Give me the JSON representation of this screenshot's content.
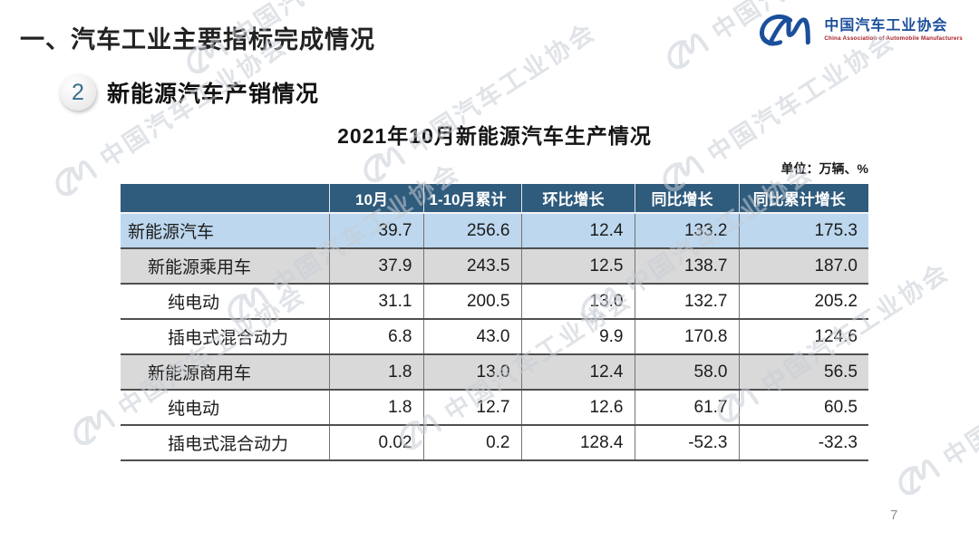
{
  "slide": {
    "title": "一、汽车工业主要指标完成情况",
    "page_number": "7"
  },
  "logo": {
    "name_cn": "中国汽车工业协会",
    "name_en": "China Association of Automobile Manufacturers",
    "brand_blue": "#1b4f9b",
    "subtitle_red": "#a61c24"
  },
  "section": {
    "badge": "2",
    "heading": "新能源汽车产销情况"
  },
  "table_title": "2021年10月新能源汽车生产情况",
  "unit_note": "单位：万辆、%",
  "watermark": {
    "text": "中国汽车工业协会"
  },
  "colors": {
    "header_bg": "#2f5b7d",
    "row_blue": "#bdd7ee",
    "row_gray": "#d9d9d9"
  },
  "table": {
    "columns": [
      "",
      "10月",
      "1-10月累计",
      "环比增长",
      "同比增长",
      "同比累计增长"
    ],
    "rows": [
      {
        "label": "新能源汽车",
        "indent": 0,
        "values": [
          "39.7",
          "256.6",
          "12.4",
          "133.2",
          "175.3"
        ]
      },
      {
        "label": "新能源乘用车",
        "indent": 1,
        "values": [
          "37.9",
          "243.5",
          "12.5",
          "138.7",
          "187.0"
        ]
      },
      {
        "label": "纯电动",
        "indent": 2,
        "values": [
          "31.1",
          "200.5",
          "13.0",
          "132.7",
          "205.2"
        ]
      },
      {
        "label": "插电式混合动力",
        "indent": 2,
        "values": [
          "6.8",
          "43.0",
          "9.9",
          "170.8",
          "124.6"
        ]
      },
      {
        "label": "新能源商用车",
        "indent": 1,
        "values": [
          "1.8",
          "13.0",
          "12.4",
          "58.0",
          "56.5"
        ]
      },
      {
        "label": "纯电动",
        "indent": 2,
        "values": [
          "1.8",
          "12.7",
          "12.6",
          "61.7",
          "60.5"
        ]
      },
      {
        "label": "插电式混合动力",
        "indent": 2,
        "values": [
          "0.02",
          "0.2",
          "128.4",
          "-52.3",
          "-32.3"
        ]
      }
    ]
  }
}
